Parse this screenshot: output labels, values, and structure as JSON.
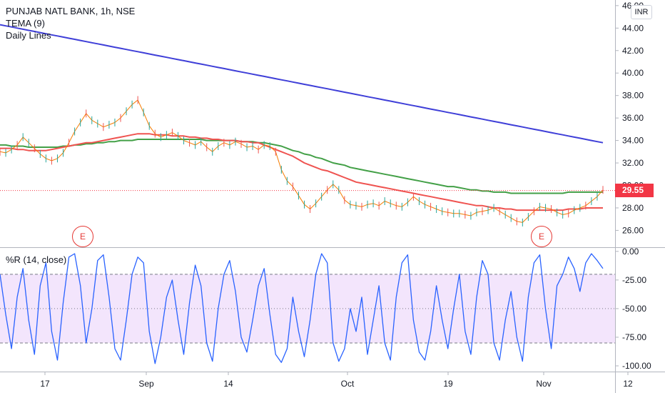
{
  "legend": {
    "symbol": "PUNJAB NATL BANK, 1h, NSE",
    "indicator1": "TEMA (9)",
    "indicator2": "Daily Lines"
  },
  "currency": "INR",
  "last_price": "29.55",
  "earnings_label": "E",
  "oscillator_label": "%R (14, close)",
  "chart_data": [
    {
      "type": "line",
      "title": "PUNJAB NATL BANK, 1h, NSE",
      "x_ticks": [
        "17",
        "Sep",
        "14",
        "Oct",
        "19",
        "Nov",
        "12"
      ],
      "y_ticks": [
        "26.00",
        "28.00",
        "30.00",
        "32.00",
        "34.00",
        "36.00",
        "38.00",
        "40.00",
        "42.00",
        "44.00",
        "46.00"
      ],
      "ylim": [
        24.5,
        46.5
      ],
      "last_value": 29.55,
      "series": [
        {
          "name": "TEMA (9)",
          "color": "#f57c00",
          "values": [
            33.0,
            32.9,
            33.2,
            33.6,
            34.3,
            33.8,
            33.3,
            32.8,
            32.4,
            32.2,
            32.4,
            32.9,
            33.8,
            34.8,
            35.6,
            36.4,
            35.8,
            35.5,
            35.2,
            35.4,
            35.6,
            36.0,
            36.6,
            37.2,
            37.6,
            36.5,
            35.3,
            34.6,
            34.3,
            34.5,
            34.7,
            34.4,
            34.0,
            33.8,
            33.6,
            33.9,
            33.4,
            33.0,
            33.5,
            33.8,
            33.6,
            33.9,
            33.7,
            33.4,
            33.5,
            33.2,
            33.6,
            33.5,
            33.0,
            31.4,
            30.4,
            29.9,
            29.1,
            28.3,
            27.9,
            28.4,
            29.0,
            29.6,
            30.1,
            29.6,
            28.7,
            28.3,
            28.2,
            28.1,
            28.3,
            28.4,
            28.2,
            28.6,
            28.4,
            28.2,
            28.1,
            28.5,
            29.0,
            28.6,
            28.3,
            28.1,
            27.9,
            27.7,
            27.6,
            27.5,
            27.5,
            27.4,
            27.3,
            27.6,
            27.7,
            27.8,
            28.0,
            27.7,
            27.4,
            27.1,
            26.8,
            26.7,
            27.2,
            27.7,
            28.1,
            28.0,
            27.9,
            27.6,
            27.4,
            27.5,
            27.8,
            28.0,
            28.2,
            28.6,
            29.0,
            29.6
          ]
        },
        {
          "name": "Daily Lines (red)",
          "color": "#ef5350",
          "values": [
            33.3,
            33.3,
            33.3,
            33.2,
            33.2,
            33.1,
            33.1,
            33.1,
            33.1,
            33.2,
            33.3,
            33.4,
            33.5,
            33.6,
            33.7,
            33.8,
            33.8,
            33.9,
            34.0,
            34.1,
            34.2,
            34.3,
            34.4,
            34.5,
            34.6,
            34.6,
            34.6,
            34.5,
            34.5,
            34.5,
            34.4,
            34.4,
            34.4,
            34.3,
            34.3,
            34.2,
            34.2,
            34.1,
            34.1,
            34.0,
            34.0,
            34.0,
            33.9,
            33.9,
            33.8,
            33.8,
            33.6,
            33.4,
            33.2,
            33.0,
            32.8,
            32.6,
            32.3,
            32.0,
            31.8,
            31.6,
            31.4,
            31.3,
            31.1,
            30.9,
            30.7,
            30.5,
            30.3,
            30.2,
            30.1,
            30.0,
            29.9,
            29.8,
            29.7,
            29.6,
            29.5,
            29.4,
            29.3,
            29.2,
            29.1,
            29.0,
            28.9,
            28.8,
            28.7,
            28.6,
            28.5,
            28.4,
            28.3,
            28.2,
            28.2,
            28.1,
            28.0,
            28.0,
            27.9,
            27.9,
            27.8,
            27.8,
            27.8,
            27.8,
            27.8,
            27.8,
            27.8,
            27.8,
            27.8,
            27.9,
            27.9,
            27.9,
            28.0,
            28.0,
            28.0,
            28.0
          ]
        },
        {
          "name": "Daily Lines (green)",
          "color": "#43a047",
          "values": [
            33.6,
            33.6,
            33.5,
            33.5,
            33.5,
            33.4,
            33.4,
            33.4,
            33.4,
            33.4,
            33.4,
            33.5,
            33.5,
            33.6,
            33.6,
            33.7,
            33.7,
            33.8,
            33.8,
            33.9,
            33.9,
            34.0,
            34.0,
            34.0,
            34.1,
            34.1,
            34.1,
            34.1,
            34.1,
            34.1,
            34.1,
            34.1,
            34.1,
            34.1,
            34.1,
            34.1,
            34.0,
            34.0,
            34.0,
            34.0,
            34.0,
            34.0,
            33.9,
            33.9,
            33.9,
            33.8,
            33.8,
            33.7,
            33.6,
            33.5,
            33.3,
            33.1,
            33.0,
            32.8,
            32.7,
            32.5,
            32.4,
            32.2,
            32.0,
            31.9,
            31.8,
            31.6,
            31.5,
            31.4,
            31.3,
            31.2,
            31.1,
            31.0,
            30.9,
            30.8,
            30.7,
            30.6,
            30.5,
            30.4,
            30.3,
            30.2,
            30.1,
            30.0,
            29.9,
            29.9,
            29.8,
            29.7,
            29.6,
            29.6,
            29.5,
            29.5,
            29.4,
            29.4,
            29.4,
            29.3,
            29.3,
            29.3,
            29.3,
            29.3,
            29.3,
            29.3,
            29.3,
            29.3,
            29.3,
            29.4,
            29.4,
            29.4,
            29.4,
            29.4,
            29.4,
            29.4
          ]
        },
        {
          "name": "Daily Lines (blue)",
          "color": "#3f3fd8",
          "values": [
            44.3,
            44.2,
            44.1,
            44.0,
            43.9,
            43.8,
            43.7,
            43.6,
            43.5,
            43.4,
            43.3,
            43.2,
            43.1,
            43.0,
            42.9,
            42.8,
            42.7,
            42.6,
            42.5,
            42.4,
            42.3,
            42.2,
            42.1,
            42.0,
            41.9,
            41.8,
            41.7,
            41.6,
            41.5,
            41.4,
            41.3,
            41.2,
            41.1,
            41.0,
            40.9,
            40.8,
            40.7,
            40.6,
            40.5,
            40.4,
            40.3,
            40.2,
            40.1,
            40.0,
            39.9,
            39.8,
            39.7,
            39.6,
            39.5,
            39.4,
            39.3,
            39.2,
            39.1,
            39.0,
            38.9,
            38.8,
            38.7,
            38.6,
            38.5,
            38.4,
            38.3,
            38.2,
            38.1,
            38.0,
            37.9,
            37.8,
            37.7,
            37.6,
            37.5,
            37.4,
            37.3,
            37.2,
            37.1,
            37.0,
            36.9,
            36.8,
            36.7,
            36.6,
            36.5,
            36.4,
            36.3,
            36.2,
            36.1,
            36.0,
            35.9,
            35.8,
            35.7,
            35.6,
            35.5,
            35.4,
            35.3,
            35.2,
            35.1,
            35.0,
            34.9,
            34.8,
            34.7,
            34.6,
            34.5,
            34.4,
            34.3,
            34.2,
            34.1,
            34.0,
            33.9,
            33.8
          ]
        }
      ]
    },
    {
      "type": "line",
      "title": "%R (14, close)",
      "y_ticks": [
        "0.00",
        "-25.00",
        "-50.00",
        "-75.00",
        "-100.00"
      ],
      "ylim": [
        -105,
        3
      ],
      "bands": [
        -20,
        -50,
        -80
      ],
      "series": [
        {
          "name": "%R",
          "color": "#2962ff",
          "values": [
            -20,
            -55,
            -85,
            -40,
            -15,
            -60,
            -90,
            -30,
            -10,
            -70,
            -95,
            -45,
            -5,
            -2,
            -30,
            -80,
            -50,
            -8,
            -3,
            -40,
            -85,
            -95,
            -60,
            -20,
            -5,
            -10,
            -70,
            -98,
            -75,
            -40,
            -25,
            -60,
            -90,
            -45,
            -12,
            -30,
            -80,
            -96,
            -50,
            -20,
            -8,
            -35,
            -75,
            -88,
            -60,
            -30,
            -15,
            -55,
            -90,
            -97,
            -85,
            -40,
            -70,
            -92,
            -60,
            -20,
            -2,
            -10,
            -80,
            -96,
            -85,
            -50,
            -70,
            -40,
            -90,
            -60,
            -30,
            -80,
            -95,
            -40,
            -10,
            -3,
            -60,
            -88,
            -95,
            -70,
            -30,
            -60,
            -85,
            -50,
            -20,
            -70,
            -90,
            -40,
            -8,
            -20,
            -80,
            -95,
            -60,
            -35,
            -75,
            -96,
            -40,
            -10,
            -3,
            -50,
            -85,
            -30,
            -20,
            -5,
            -15,
            -35,
            -10,
            -2,
            -8,
            -15
          ]
        }
      ]
    }
  ]
}
